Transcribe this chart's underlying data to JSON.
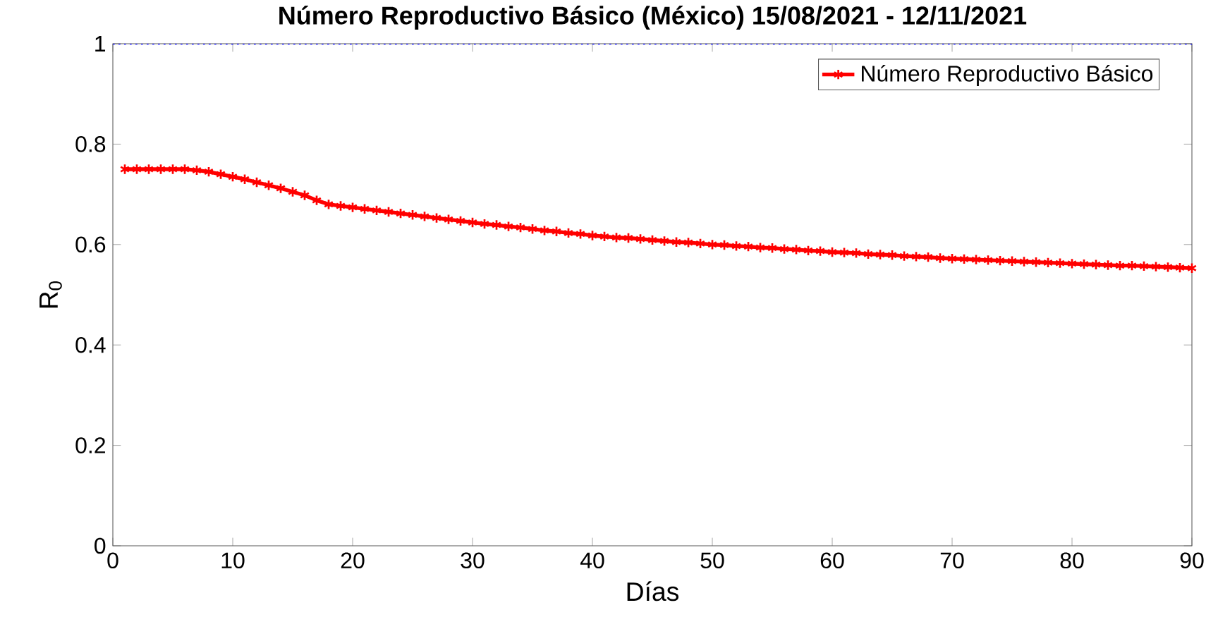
{
  "chart_data": {
    "type": "line",
    "title": "Número Reproductivo Básico (México) 15/08/2021 - 12/11/2021",
    "xlabel": "Días",
    "ylabel": "R$_{0}$",
    "x": [
      1,
      2,
      3,
      4,
      5,
      6,
      7,
      8,
      9,
      10,
      11,
      12,
      13,
      14,
      15,
      16,
      17,
      18,
      19,
      20,
      21,
      22,
      23,
      24,
      25,
      26,
      27,
      28,
      29,
      30,
      31,
      32,
      33,
      34,
      35,
      36,
      37,
      38,
      39,
      40,
      41,
      42,
      43,
      44,
      45,
      46,
      47,
      48,
      49,
      50,
      51,
      52,
      53,
      54,
      55,
      56,
      57,
      58,
      59,
      60,
      61,
      62,
      63,
      64,
      65,
      66,
      67,
      68,
      69,
      70,
      71,
      72,
      73,
      74,
      75,
      76,
      77,
      78,
      79,
      80,
      81,
      82,
      83,
      84,
      85,
      86,
      87,
      88,
      89,
      90
    ],
    "series": [
      {
        "name": "Número Reproductivo Básico",
        "color": "#ff0000",
        "values": [
          0.75,
          0.75,
          0.75,
          0.75,
          0.75,
          0.75,
          0.748,
          0.745,
          0.74,
          0.735,
          0.73,
          0.724,
          0.718,
          0.712,
          0.705,
          0.698,
          0.688,
          0.68,
          0.677,
          0.674,
          0.671,
          0.668,
          0.665,
          0.662,
          0.659,
          0.656,
          0.653,
          0.65,
          0.647,
          0.644,
          0.641,
          0.639,
          0.636,
          0.634,
          0.631,
          0.628,
          0.626,
          0.623,
          0.621,
          0.618,
          0.616,
          0.614,
          0.613,
          0.611,
          0.609,
          0.607,
          0.605,
          0.604,
          0.602,
          0.6,
          0.599,
          0.597,
          0.596,
          0.594,
          0.593,
          0.591,
          0.59,
          0.588,
          0.587,
          0.585,
          0.584,
          0.583,
          0.581,
          0.58,
          0.579,
          0.577,
          0.576,
          0.575,
          0.573,
          0.572,
          0.571,
          0.57,
          0.569,
          0.568,
          0.567,
          0.566,
          0.565,
          0.564,
          0.563,
          0.562,
          0.561,
          0.56,
          0.559,
          0.558,
          0.558,
          0.557,
          0.556,
          0.555,
          0.554,
          0.553
        ]
      }
    ],
    "ref_lines": [
      {
        "axis": "y",
        "value": 1,
        "color": "#0000ff",
        "line_style": "dotted"
      }
    ],
    "xlim": [
      0,
      90
    ],
    "xticks": [
      0,
      10,
      20,
      30,
      40,
      50,
      60,
      70,
      80,
      90
    ],
    "ylim": [
      0,
      1
    ],
    "yticks": [
      0,
      0.2,
      0.4,
      0.6,
      0.8,
      1
    ],
    "legend": "top right",
    "marker": "cross",
    "line_style": "solid",
    "grid": false
  }
}
